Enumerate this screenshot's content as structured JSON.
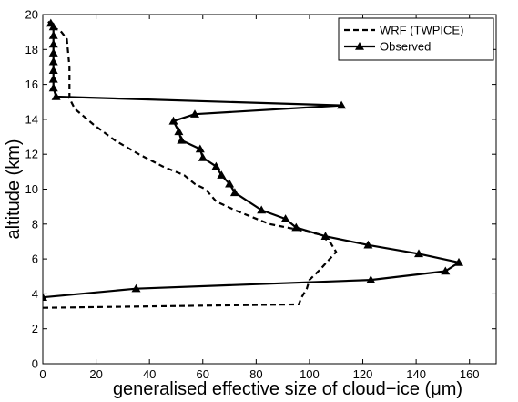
{
  "chart_data": {
    "type": "line",
    "title": "",
    "xlabel": "generalised effective size of cloud−ice (μm)",
    "ylabel": "altitude (km)",
    "xlim": [
      0,
      170
    ],
    "ylim": [
      0,
      20
    ],
    "xticks": [
      0,
      20,
      40,
      60,
      80,
      100,
      120,
      140,
      160
    ],
    "xtick_labels": [
      "0",
      "20",
      "40",
      "60",
      "80",
      "100",
      "120",
      "140",
      "160"
    ],
    "yticks": [
      0,
      2,
      4,
      6,
      8,
      10,
      12,
      14,
      16,
      18,
      20
    ],
    "ytick_labels": [
      "0",
      "2",
      "4",
      "6",
      "8",
      "10",
      "12",
      "14",
      "16",
      "18",
      "20"
    ],
    "grid": false,
    "legend_position": "top-right",
    "series": [
      {
        "name": "WRF (TWPICE)",
        "style": "dashed",
        "color": "#000000",
        "x": [
          0,
          96,
          97,
          99,
          100,
          104,
          110,
          108,
          104,
          95,
          85,
          72,
          65,
          61,
          57,
          53,
          45,
          36,
          27,
          19,
          12,
          10,
          10,
          9,
          7,
          4,
          2
        ],
        "y": [
          3.2,
          3.4,
          3.8,
          4.3,
          4.8,
          5.4,
          6.4,
          6.9,
          7.4,
          7.7,
          8.0,
          8.8,
          9.3,
          10.0,
          10.3,
          10.8,
          11.3,
          12.0,
          12.8,
          13.7,
          14.6,
          15.2,
          17.0,
          18.6,
          19.0,
          19.3,
          19.6
        ]
      },
      {
        "name": "Observed",
        "style": "solid",
        "color": "#000000",
        "marker": "triangle",
        "x": [
          0,
          35,
          123,
          151,
          156,
          141,
          122,
          106,
          95,
          91,
          82,
          72,
          70,
          67,
          65,
          60,
          59,
          52,
          51,
          49,
          57,
          112,
          5,
          4,
          4,
          4,
          4,
          4,
          4,
          4,
          4,
          3
        ],
        "y": [
          3.8,
          4.3,
          4.8,
          5.3,
          5.8,
          6.3,
          6.8,
          7.3,
          7.8,
          8.3,
          8.8,
          9.8,
          10.3,
          10.8,
          11.3,
          11.8,
          12.3,
          12.8,
          13.3,
          13.9,
          14.3,
          14.8,
          15.3,
          15.8,
          16.3,
          16.8,
          17.3,
          17.8,
          18.3,
          18.8,
          19.3,
          19.5
        ]
      }
    ]
  }
}
